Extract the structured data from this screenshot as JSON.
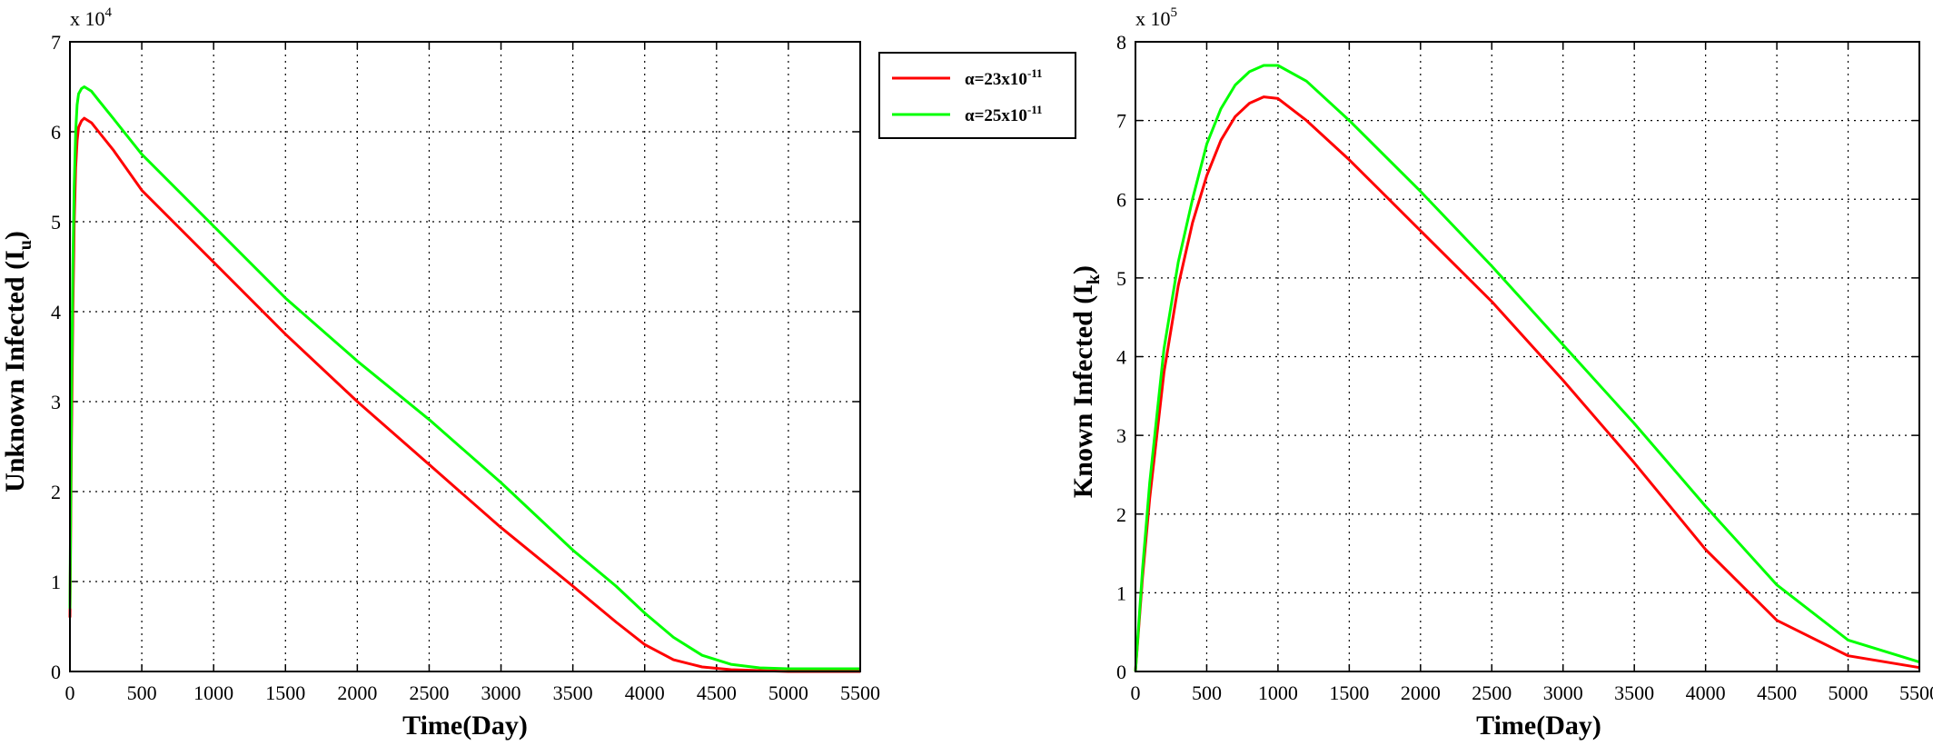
{
  "chart_data": [
    {
      "type": "line",
      "xlabel": "Time(Day)",
      "ylabel": "Unknown Infected (I",
      "ylabel_sub": "u",
      "ylabel_close": ")",
      "exponent_label": "x 10",
      "exponent": "4",
      "xlim": [
        0,
        5500
      ],
      "ylim": [
        0,
        7
      ],
      "y_multiplier": 10000,
      "xticks": [
        "0",
        "500",
        "1000",
        "1500",
        "2000",
        "2500",
        "3000",
        "3500",
        "4000",
        "4500",
        "5000",
        "5500"
      ],
      "yticks": [
        "0",
        "1",
        "2",
        "3",
        "4",
        "5",
        "6",
        "7"
      ],
      "grid": true,
      "series": [
        {
          "label_prefix": "α=23x10",
          "label_exp": "-11",
          "color": "#ff0000",
          "x": [
            0,
            10,
            20,
            30,
            40,
            50,
            60,
            80,
            100,
            150,
            200,
            300,
            500,
            1000,
            1500,
            2000,
            2500,
            3000,
            3500,
            3800,
            4000,
            4200,
            4400,
            4600,
            4800,
            5000,
            5500
          ],
          "y": [
            0.6,
            2.5,
            4.0,
            5.0,
            5.6,
            5.9,
            6.05,
            6.12,
            6.15,
            6.1,
            6.0,
            5.8,
            5.35,
            4.55,
            3.75,
            3.0,
            2.3,
            1.6,
            0.95,
            0.55,
            0.3,
            0.13,
            0.05,
            0.02,
            0.01,
            0.0,
            0.0
          ]
        },
        {
          "label_prefix": "α=25x10",
          "label_exp": "-11",
          "color": "#00ff00",
          "x": [
            0,
            10,
            20,
            30,
            40,
            50,
            60,
            80,
            100,
            150,
            200,
            300,
            500,
            1000,
            1500,
            2000,
            2500,
            3000,
            3500,
            3800,
            4000,
            4200,
            4400,
            4600,
            4800,
            5000,
            5500
          ],
          "y": [
            0.7,
            3.0,
            4.5,
            5.4,
            6.0,
            6.3,
            6.42,
            6.48,
            6.5,
            6.45,
            6.35,
            6.15,
            5.75,
            4.95,
            4.15,
            3.45,
            2.8,
            2.1,
            1.35,
            0.95,
            0.65,
            0.38,
            0.18,
            0.08,
            0.04,
            0.03,
            0.03
          ]
        }
      ]
    },
    {
      "type": "line",
      "xlabel": "Time(Day)",
      "ylabel": "Known Infected (I",
      "ylabel_sub": "k",
      "ylabel_close": ")",
      "exponent_label": "x 10",
      "exponent": "5",
      "xlim": [
        0,
        5500
      ],
      "ylim": [
        0,
        8
      ],
      "y_multiplier": 100000,
      "xticks": [
        "0",
        "500",
        "1000",
        "1500",
        "2000",
        "2500",
        "3000",
        "3500",
        "4000",
        "4500",
        "5000",
        "5500"
      ],
      "yticks": [
        "0",
        "1",
        "2",
        "3",
        "4",
        "5",
        "6",
        "7",
        "8"
      ],
      "grid": true,
      "series": [
        {
          "label_prefix": "α=23x10",
          "label_exp": "-11",
          "color": "#ff0000",
          "x": [
            0,
            50,
            100,
            200,
            300,
            400,
            500,
            600,
            700,
            800,
            900,
            1000,
            1200,
            1500,
            2000,
            2500,
            3000,
            3500,
            4000,
            4500,
            5000,
            5500
          ],
          "y": [
            0,
            1.2,
            2.2,
            3.8,
            4.9,
            5.7,
            6.3,
            6.75,
            7.05,
            7.22,
            7.3,
            7.28,
            7.0,
            6.5,
            5.6,
            4.7,
            3.7,
            2.65,
            1.55,
            0.65,
            0.2,
            0.05
          ]
        },
        {
          "label_prefix": "α=25x10",
          "label_exp": "-11",
          "color": "#00ff00",
          "x": [
            0,
            50,
            100,
            200,
            300,
            400,
            500,
            600,
            700,
            800,
            900,
            1000,
            1200,
            1500,
            2000,
            2500,
            3000,
            3500,
            4000,
            4500,
            5000,
            5500
          ],
          "y": [
            0,
            1.3,
            2.4,
            4.1,
            5.2,
            6.0,
            6.7,
            7.15,
            7.45,
            7.62,
            7.7,
            7.7,
            7.5,
            7.0,
            6.1,
            5.15,
            4.15,
            3.15,
            2.1,
            1.1,
            0.4,
            0.12
          ]
        }
      ]
    }
  ]
}
